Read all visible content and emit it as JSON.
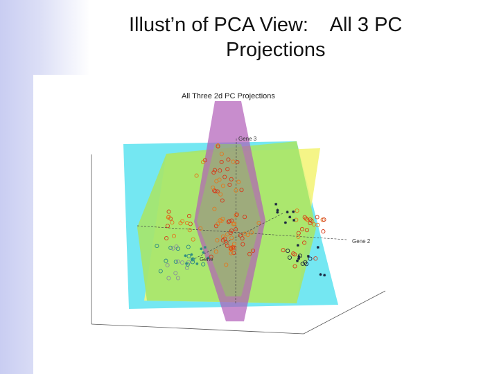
{
  "slide": {
    "title_line1": "Illust’n of PCA View:    All 3 PC",
    "title_line2": "Projections"
  },
  "figure": {
    "title": "All Three 2d PC Projections",
    "axes": {
      "gene2": "Gene 2",
      "gene3": "Gene 3",
      "gene1": "Gene"
    },
    "colors": {
      "plane_cyan": "#5ce3f0",
      "plane_yellow": "#f4f47a",
      "plane_green": "#a6e66c",
      "plane_purple": "#b15cb8",
      "points_red": "#d63a1a",
      "points_orange": "#e07a20",
      "points_dark": "#1a2440",
      "points_teal": "#2d8a84",
      "points_gray": "#8a8f9a"
    },
    "icons": {
      "points": "circle-marker",
      "stars": "asterisk-marker"
    }
  }
}
